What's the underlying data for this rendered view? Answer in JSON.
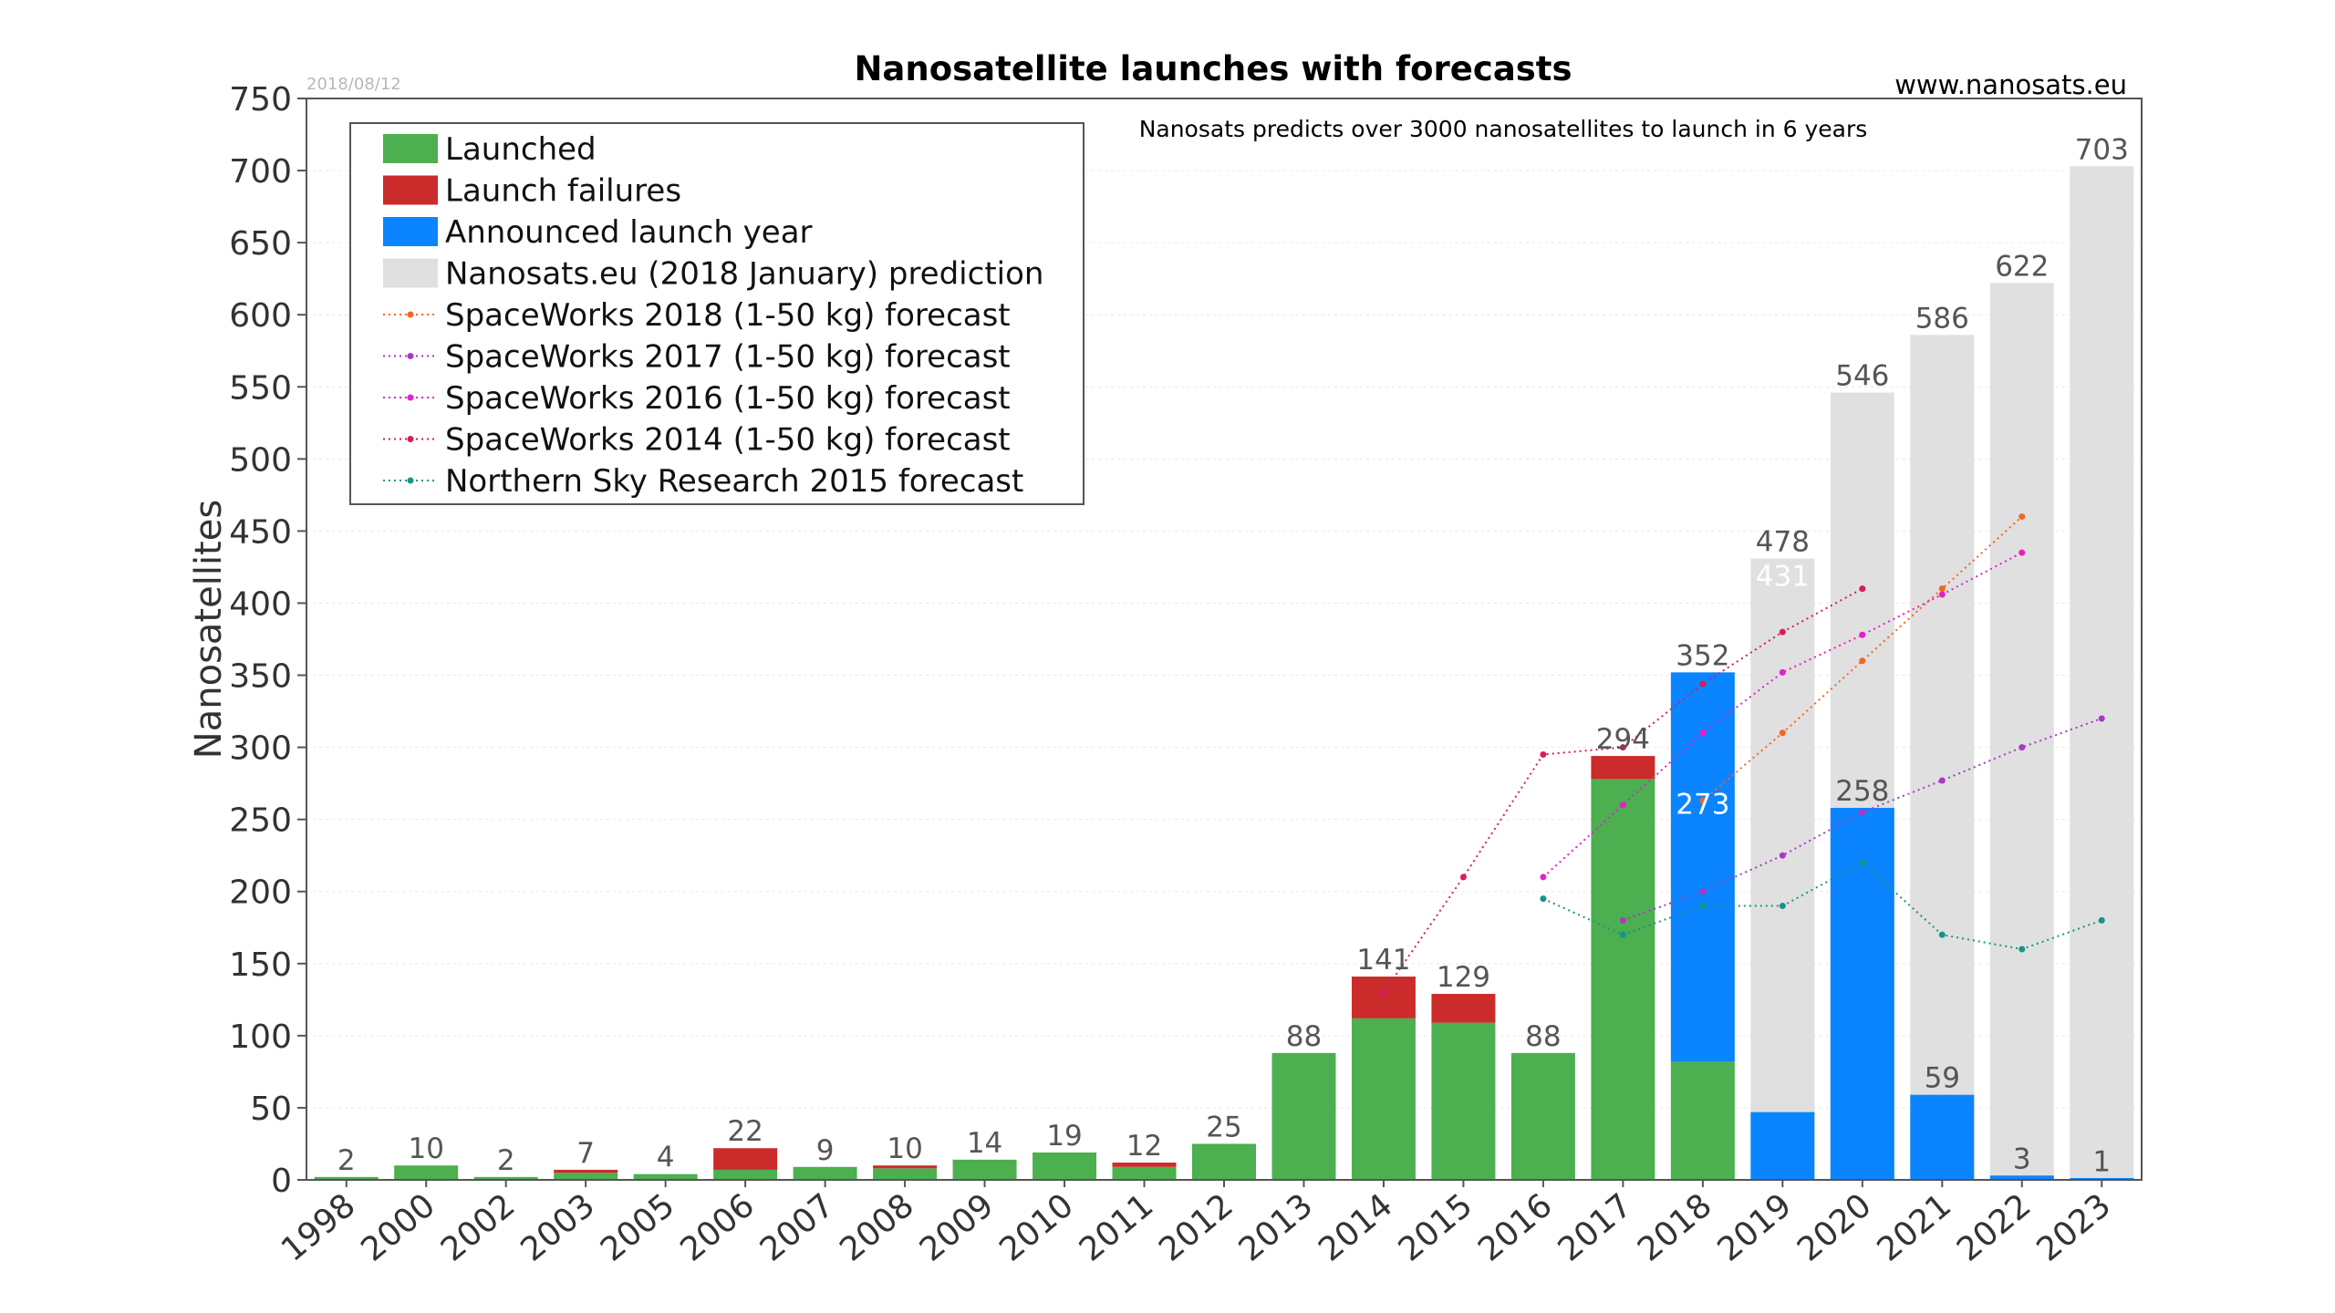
{
  "chart_data": {
    "type": "bar",
    "title": "Nanosatellite launches with forecasts",
    "date_stamp": "2018/08/12",
    "website": "www.nanosats.eu",
    "annotation": "Nanosats predicts over 3000 nanosatellites to launch in 6 years",
    "ylabel": "Nanosatellites",
    "xlabel": "",
    "ylim": [
      0,
      750
    ],
    "yticks": [
      0,
      50,
      100,
      150,
      200,
      250,
      300,
      350,
      400,
      450,
      500,
      550,
      600,
      650,
      700,
      750
    ],
    "grid": true,
    "legend_position": "top-left",
    "categories": [
      "1998",
      "2000",
      "2002",
      "2003",
      "2005",
      "2006",
      "2007",
      "2008",
      "2009",
      "2010",
      "2011",
      "2012",
      "2013",
      "2014",
      "2015",
      "2016",
      "2017",
      "2018",
      "2019",
      "2020",
      "2021",
      "2022",
      "2023"
    ],
    "bars": {
      "launched": [
        2,
        10,
        2,
        5,
        4,
        7,
        9,
        8,
        14,
        19,
        9,
        25,
        88,
        112,
        109,
        88,
        278,
        82,
        0,
        0,
        0,
        0,
        0
      ],
      "failures": [
        0,
        0,
        0,
        2,
        0,
        15,
        0,
        2,
        0,
        0,
        3,
        0,
        0,
        29,
        20,
        0,
        16,
        0,
        0,
        0,
        0,
        0,
        0
      ],
      "announced": [
        0,
        0,
        0,
        0,
        0,
        0,
        0,
        0,
        0,
        0,
        0,
        0,
        0,
        0,
        0,
        0,
        0,
        270,
        47,
        258,
        59,
        3,
        1
      ],
      "prediction": [
        null,
        null,
        null,
        null,
        null,
        null,
        null,
        null,
        null,
        null,
        null,
        null,
        null,
        null,
        null,
        null,
        null,
        273,
        431,
        546,
        586,
        622,
        703
      ]
    },
    "labels": {
      "top": [
        "2",
        "10",
        "2",
        "7",
        "4",
        "22",
        "9",
        "10",
        "14",
        "19",
        "12",
        "25",
        "88",
        "141",
        "129",
        "88",
        "294",
        "352",
        "478",
        "546",
        "586",
        "622",
        "703"
      ],
      "inner": [
        "",
        "",
        "",
        "",
        "",
        "",
        "",
        "",
        "",
        "",
        "",
        "",
        "",
        "",
        "",
        "",
        "",
        "273",
        "431",
        "",
        "",
        "",
        ""
      ],
      "blue": [
        "",
        "",
        "",
        "",
        "",
        "",
        "",
        "",
        "",
        "",
        "",
        "",
        "",
        "",
        "",
        "",
        "",
        "",
        "",
        "258",
        "59",
        "3",
        "1"
      ]
    },
    "series": [
      {
        "name": "SpaceWorks 2018 (1-50 kg) forecast",
        "color": "#f26522",
        "x": [
          "2018",
          "2019",
          "2020",
          "2021",
          "2022"
        ],
        "values": [
          263,
          310,
          360,
          410,
          460
        ]
      },
      {
        "name": "SpaceWorks 2017 (1-50 kg) forecast",
        "color": "#a839c0",
        "x": [
          "2017",
          "2018",
          "2019",
          "2020",
          "2021",
          "2022",
          "2023"
        ],
        "values": [
          180,
          200,
          225,
          255,
          277,
          300,
          320
        ]
      },
      {
        "name": "SpaceWorks 2016 (1-50 kg) forecast",
        "color": "#e61fc6",
        "x": [
          "2016",
          "2017",
          "2018",
          "2019",
          "2020",
          "2021",
          "2022"
        ],
        "values": [
          210,
          260,
          310,
          352,
          378,
          406,
          435
        ]
      },
      {
        "name": "SpaceWorks 2014 (1-50 kg) forecast",
        "color": "#d81b60",
        "x": [
          "2014",
          "2015",
          "2016",
          "2017",
          "2018",
          "2019",
          "2020"
        ],
        "values": [
          130,
          210,
          295,
          300,
          344,
          380,
          410
        ]
      },
      {
        "name": "Northern Sky Research 2015 forecast",
        "color": "#17948a",
        "x": [
          "2016",
          "2017",
          "2018",
          "2019",
          "2020",
          "2021",
          "2022",
          "2023"
        ],
        "values": [
          195,
          170,
          190,
          190,
          220,
          170,
          160,
          180
        ]
      }
    ],
    "legend": [
      {
        "name": "Launched",
        "type": "patch",
        "color": "#4caf50"
      },
      {
        "name": "Launch failures",
        "type": "patch",
        "color": "#cc2b2b"
      },
      {
        "name": "Announced launch year",
        "type": "patch",
        "color": "#0a84ff"
      },
      {
        "name": "Nanosats.eu (2018 January) prediction",
        "type": "patch",
        "color": "#e0e0e0"
      },
      {
        "name": "SpaceWorks 2018 (1-50 kg) forecast",
        "type": "line",
        "color": "#f26522"
      },
      {
        "name": "SpaceWorks 2017 (1-50 kg) forecast",
        "type": "line",
        "color": "#a839c0"
      },
      {
        "name": "SpaceWorks 2016 (1-50 kg) forecast",
        "type": "line",
        "color": "#e61fc6"
      },
      {
        "name": "SpaceWorks 2014 (1-50 kg) forecast",
        "type": "line",
        "color": "#d81b60"
      },
      {
        "name": "Northern Sky Research 2015 forecast",
        "type": "line",
        "color": "#17948a"
      }
    ],
    "colors": {
      "launched": "#4caf50",
      "failures": "#cc2b2b",
      "announced": "#0a84ff",
      "prediction": "#e0e0e0",
      "label_dark": "#555555",
      "label_light": "#ffffff"
    }
  }
}
